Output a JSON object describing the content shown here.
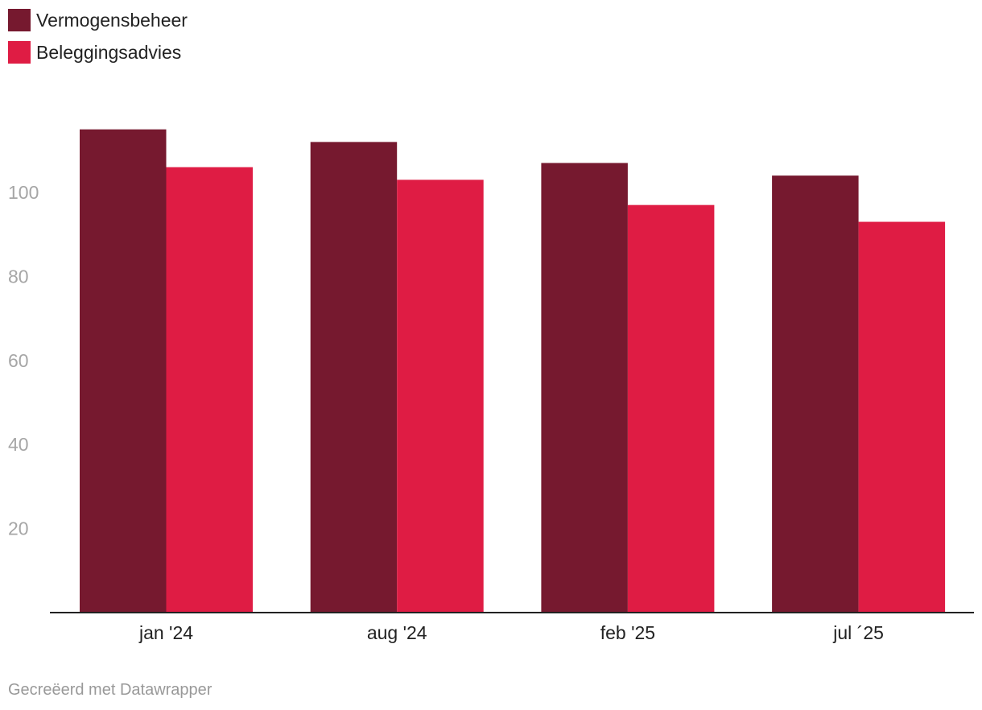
{
  "colors": {
    "vermogensbeheer": "#76192F",
    "beleggingsadvies": "#DF1C44",
    "tick_label": "#A6A6A6",
    "category_label": "#222222",
    "baseline": "#222222"
  },
  "legend": [
    {
      "label": "Vermogensbeheer",
      "color": "#76192F"
    },
    {
      "label": "Beleggingsadvies",
      "color": "#DF1C44"
    }
  ],
  "footer": {
    "credit": "Gecreëerd met Datawrapper"
  },
  "chart_data": {
    "type": "bar",
    "title": "",
    "xlabel": "",
    "ylabel": "",
    "categories": [
      "jan '24",
      "aug '24",
      "feb '25",
      "jul ´25"
    ],
    "series": [
      {
        "name": "Vermogensbeheer",
        "values": [
          115,
          112,
          107,
          104
        ]
      },
      {
        "name": "Beleggingsadvies",
        "values": [
          106,
          103,
          97,
          93
        ]
      }
    ],
    "ylim": [
      0,
      115
    ],
    "yticks": [
      20,
      40,
      60,
      80,
      100
    ],
    "grid": false,
    "legend_position": "top-left"
  }
}
